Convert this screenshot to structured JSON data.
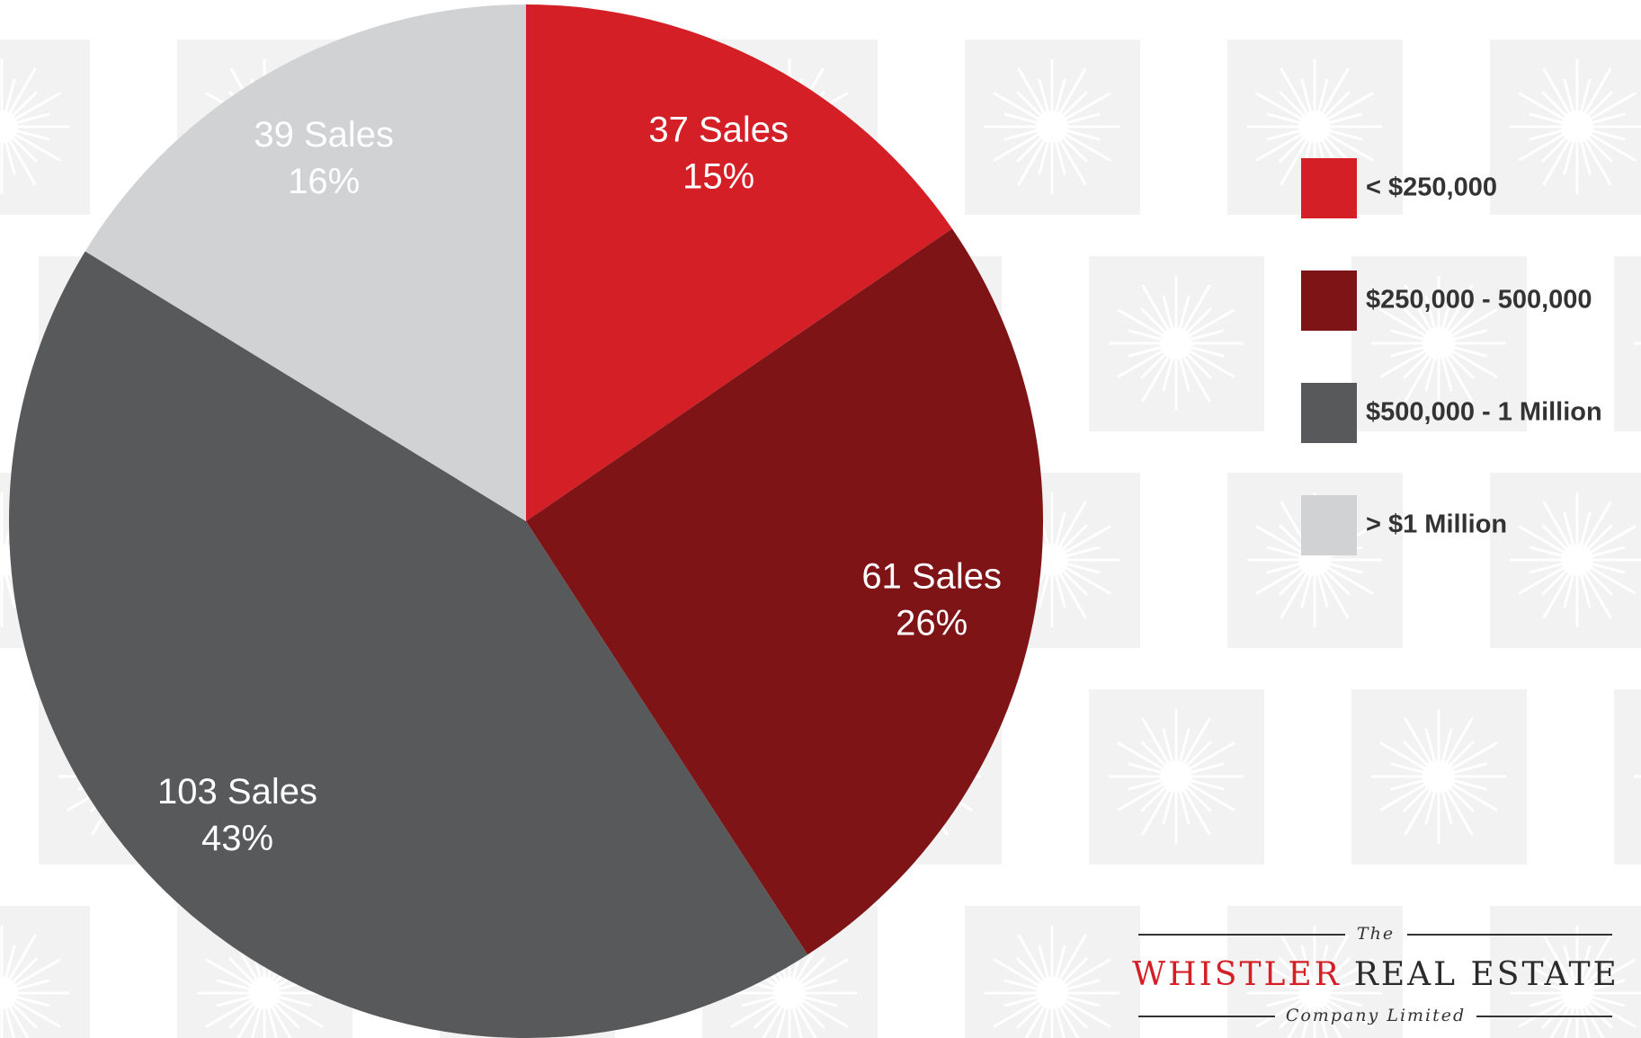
{
  "chart_data": {
    "type": "pie",
    "categories": [
      "< $250,000",
      "$250,000 - 500,000",
      "$500,000 - 1 Million",
      "> $1 Million"
    ],
    "values": [
      37,
      61,
      103,
      39
    ],
    "value_labels": [
      "37 Sales",
      "61 Sales",
      "103 Sales",
      "39 Sales"
    ],
    "percents": [
      15,
      26,
      43,
      16
    ],
    "percent_labels": [
      "15%",
      "26%",
      "43%",
      "16%"
    ],
    "colors": [
      "#d41f27",
      "#7f1417",
      "#58595b",
      "#d1d2d4"
    ],
    "legend": "right"
  },
  "logo": {
    "prefix": "The",
    "name_red": "WHISTLER",
    "name_dark": "REAL ESTATE",
    "suffix": "Company Limited"
  }
}
